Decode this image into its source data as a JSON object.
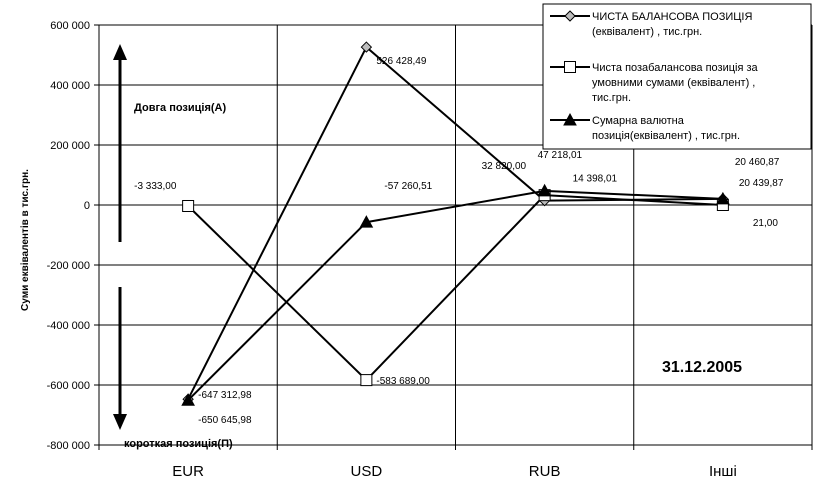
{
  "chart_data": {
    "type": "line",
    "categories": [
      "EUR",
      "USD",
      "RUB",
      "Інші"
    ],
    "ylabel": "Суми еквівалентів в тис.грн.",
    "ylim": [
      -800000,
      600000
    ],
    "yticks": [
      600000,
      400000,
      200000,
      0,
      -200000,
      -400000,
      -600000,
      -800000
    ],
    "ytick_labels": [
      "600 000",
      "400 000",
      "200 000",
      "0",
      "-200 000",
      "-400 000",
      "-600 000",
      "-800 000"
    ],
    "grid": true,
    "legend_position": "top-right",
    "series": [
      {
        "name": "ЧИСТА БАЛАНСОВА ПОЗИЦІЯ (еквівалент) , тис.грн.",
        "legend_lines": [
          "ЧИСТА БАЛАНСОВА ПОЗИЦІЯ",
          "(еквівалент) , тис.грн."
        ],
        "marker": "diamond",
        "values": [
          -647312.98,
          526428.49,
          14398.01,
          20439.87
        ],
        "labels": [
          "-647 312,98",
          "526 428,49",
          "14 398,01",
          "20 439,87"
        ]
      },
      {
        "name": "Чиста позабалансова позиція за умовними сумами (еквівалент) , тис.грн.",
        "legend_lines": [
          "Чиста позабалансова позиція за",
          "умовними сумами (еквівалент) ,",
          "тис.грн."
        ],
        "marker": "square",
        "values": [
          -3333.0,
          -583689.0,
          32820.0,
          21.0
        ],
        "labels": [
          "-3 333,00",
          "-583 689,00",
          "32 820,00",
          "21,00"
        ]
      },
      {
        "name": "Сумарна валютна позиція(еквівалент) , тис.грн.",
        "legend_lines": [
          "Сумарна валютна",
          "позиція(еквівалент) , тис.грн."
        ],
        "marker": "triangle",
        "values": [
          -650645.98,
          -57260.51,
          47218.01,
          20460.87
        ],
        "labels": [
          "-650 645,98",
          "-57 260,51",
          "47 218,01",
          "20 460,87"
        ]
      }
    ],
    "annotations": {
      "long_position": "Довга позиція(А)",
      "short_position": "короткая позиція(П)",
      "date": "31.12.2005"
    }
  }
}
